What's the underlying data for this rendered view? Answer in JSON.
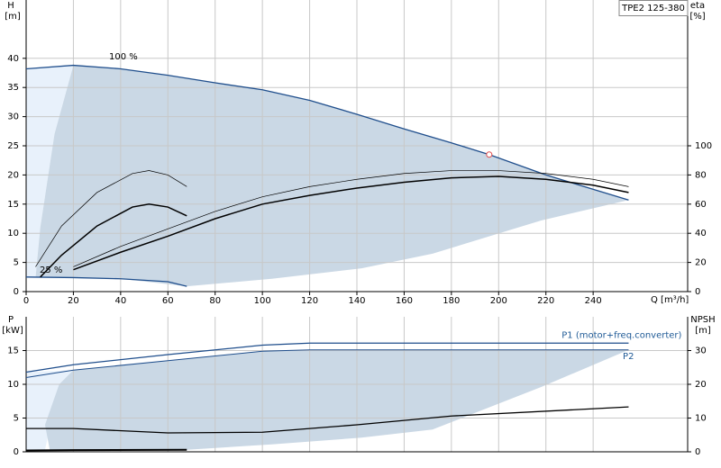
{
  "chart_data": [
    {
      "type": "line",
      "title": "TPE2 125-380",
      "y_label": "H",
      "y_unit": "[m]",
      "y2_label": "eta",
      "y2_unit": "[%]",
      "x_label": "Q [m³/h]",
      "annotations": [
        "100 %",
        "25 %"
      ],
      "xlim": [
        0,
        280
      ],
      "xticks": [
        0,
        20,
        40,
        60,
        80,
        100,
        120,
        140,
        160,
        180,
        200,
        220,
        240
      ],
      "ylim": [
        0,
        50
      ],
      "yticks": [
        0,
        5,
        10,
        15,
        20,
        25,
        30,
        35,
        40
      ],
      "y2lim": [
        0,
        200
      ],
      "y2ticks": [
        0,
        20,
        40,
        60,
        80,
        100
      ],
      "grid": true,
      "areas": [
        {
          "color": "#e8f1fb",
          "x": [
            0,
            20,
            12,
            6,
            4,
            0
          ],
          "values": [
            38.2,
            38.8,
            27,
            11,
            2.5,
            2.5
          ]
        },
        {
          "color": "#cad8e5",
          "x": [
            20,
            40,
            60,
            80,
            100,
            120,
            140,
            160,
            180,
            196,
            220,
            255,
            218,
            172,
            142,
            104,
            68,
            40,
            20,
            4,
            6,
            12
          ],
          "values": [
            38.8,
            38.2,
            37.1,
            35.8,
            34.6,
            32.8,
            30.4,
            27.9,
            25.5,
            23.5,
            20.0,
            15.7,
            12.2,
            6.5,
            4.0,
            2.2,
            0.9,
            2.2,
            2.4,
            2.5,
            11,
            27
          ]
        }
      ],
      "series": [
        {
          "color": "#1f4e8c",
          "width": 1.3,
          "x": [
            0,
            20,
            40,
            60,
            80,
            100,
            120,
            140,
            160,
            180,
            196,
            220,
            255
          ],
          "values": [
            38.2,
            38.8,
            38.2,
            37.1,
            35.8,
            34.6,
            32.8,
            30.4,
            27.9,
            25.5,
            23.5,
            20.0,
            15.7
          ]
        },
        {
          "color": "#1f4e8c",
          "width": 1.3,
          "x": [
            0,
            20,
            40,
            60,
            68
          ],
          "values": [
            2.5,
            2.4,
            2.2,
            1.7,
            0.9
          ]
        },
        {
          "color": "#000000",
          "width": 0.7,
          "axis": "y2",
          "x": [
            4,
            15,
            30,
            45,
            52,
            60,
            68
          ],
          "values": [
            17,
            45,
            68,
            81,
            83,
            80,
            72
          ]
        },
        {
          "color": "#000000",
          "width": 1.5,
          "axis": "y2",
          "x": [
            6,
            15,
            30,
            45,
            52,
            60,
            68
          ],
          "values": [
            10,
            25,
            45,
            58,
            60,
            58,
            52
          ]
        },
        {
          "color": "#000000",
          "width": 0.7,
          "axis": "y2",
          "x": [
            20,
            40,
            60,
            80,
            100,
            120,
            140,
            160,
            180,
            200,
            220,
            240,
            255
          ],
          "values": [
            17,
            31,
            43,
            55,
            65,
            72,
            77,
            81,
            83,
            83,
            81,
            77,
            72
          ]
        },
        {
          "color": "#000000",
          "width": 1.5,
          "axis": "y2",
          "x": [
            20,
            40,
            60,
            80,
            100,
            120,
            140,
            160,
            180,
            200,
            220,
            240,
            255
          ],
          "values": [
            15,
            27,
            38,
            50,
            60,
            66,
            71,
            75,
            78,
            79,
            77,
            73,
            68
          ]
        }
      ],
      "duty_point": {
        "x": 196,
        "y": 23.5
      }
    },
    {
      "type": "line",
      "y_label": "P",
      "y_unit": "[kW]",
      "y2_label": "NPSH",
      "y2_unit": "[m]",
      "xlim": [
        0,
        280
      ],
      "ylim": [
        0,
        20
      ],
      "yticks": [
        0,
        5,
        10,
        15
      ],
      "y2lim": [
        0,
        40
      ],
      "y2ticks": [
        0,
        10,
        20,
        30
      ],
      "grid": true,
      "areas": [
        {
          "color": "#e8f1fb",
          "x": [
            0,
            20,
            14,
            8,
            0
          ],
          "values": [
            11.8,
            12.1,
            10,
            0.3,
            0.3
          ]
        },
        {
          "color": "#cad8e5",
          "x": [
            20,
            60,
            100,
            120,
            255,
            218,
            172,
            142,
            104,
            68,
            10,
            8,
            14
          ],
          "values": [
            12.1,
            13.5,
            14.9,
            15.1,
            15.1,
            9.6,
            3.3,
            2.1,
            1.1,
            0.3,
            0.3,
            4,
            10
          ]
        }
      ],
      "series": [
        {
          "name": "P1 (motor+freq.converter)",
          "color": "#1f4e8c",
          "width": 1.3,
          "x": [
            0,
            20,
            60,
            100,
            120,
            255
          ],
          "values": [
            11.8,
            12.9,
            14.4,
            15.8,
            16.1,
            16.1
          ]
        },
        {
          "name": "P2",
          "color": "#1f4e8c",
          "width": 1,
          "x": [
            0,
            20,
            60,
            100,
            120,
            255
          ],
          "values": [
            11.0,
            12.1,
            13.5,
            14.9,
            15.1,
            15.1
          ]
        },
        {
          "color": "#000000",
          "width": 1.3,
          "axis": "y2",
          "x": [
            0,
            20,
            60,
            100,
            140,
            180,
            255
          ],
          "values": [
            6.9,
            6.9,
            5.6,
            5.8,
            8,
            10.6,
            13.3
          ]
        },
        {
          "color": "#000000",
          "width": 2,
          "x": [
            0,
            20,
            68
          ],
          "values": [
            0.2,
            0.25,
            0.3
          ]
        }
      ]
    }
  ]
}
